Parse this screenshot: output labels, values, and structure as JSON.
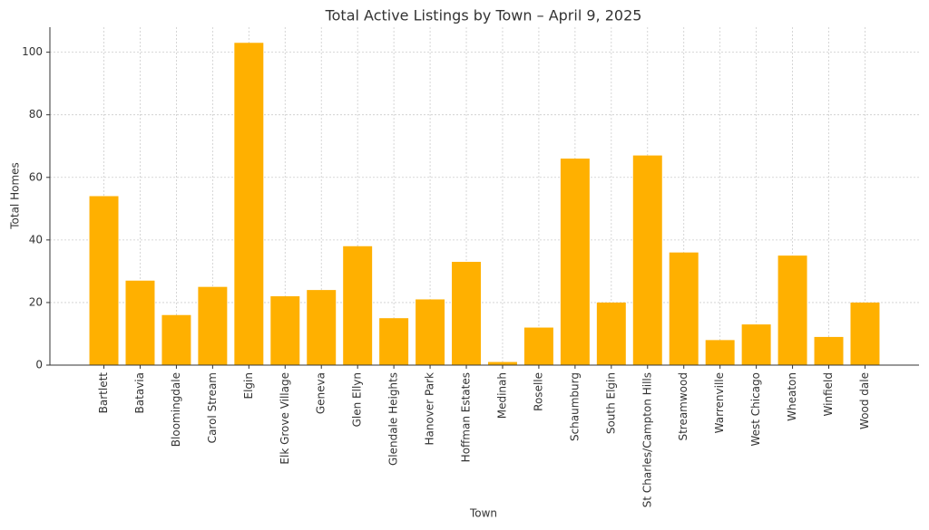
{
  "chart_data": {
    "type": "bar",
    "title": "Total Active Listings by Town – April 9, 2025",
    "x_label": "Town",
    "y_label": "Total Homes",
    "categories": [
      "Bartlett",
      "Batavia",
      "Bloomingdale",
      "Carol Stream",
      "Elgin",
      "Elk Grove Village",
      "Geneva",
      "Glen Ellyn",
      "Glendale Heights",
      "Hanover Park",
      "Hoffman Estates",
      "Medinah",
      "Roselle",
      "Schaumburg",
      "South Elgin",
      "St Charles/Campton Hills",
      "Streamwood",
      "Warrenville",
      "West Chicago",
      "Wheaton",
      "Winfield",
      "Wood dale"
    ],
    "values": [
      54,
      27,
      16,
      25,
      103,
      22,
      24,
      38,
      15,
      21,
      33,
      1,
      12,
      66,
      20,
      67,
      36,
      8,
      13,
      35,
      9,
      20
    ],
    "color": "#ffb000",
    "ylim": [
      0,
      108
    ],
    "yticks": [
      0,
      20,
      40,
      60,
      80,
      100
    ],
    "grid": true
  }
}
